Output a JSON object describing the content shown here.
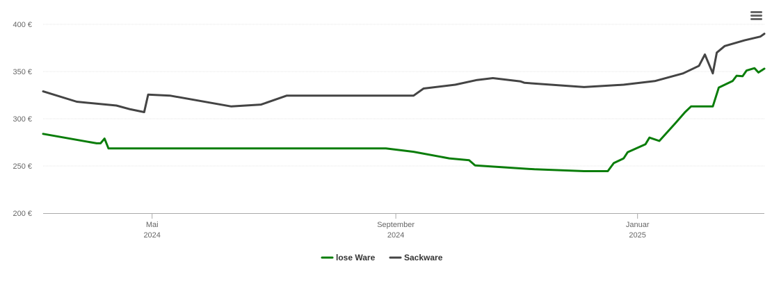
{
  "chart_data": {
    "type": "line",
    "title": "",
    "xlabel": "",
    "ylabel": "",
    "x_range": [
      "2024-03-07",
      "2025-03-06"
    ],
    "ylim": [
      200,
      400
    ],
    "y_ticks": [
      {
        "value": 400,
        "label": "400 €"
      },
      {
        "value": 350,
        "label": "350 €"
      },
      {
        "value": 300,
        "label": "300 €"
      },
      {
        "value": 250,
        "label": "250 €"
      },
      {
        "value": 200,
        "label": "200 €"
      }
    ],
    "x_ticks": [
      {
        "date": "2024-05-01",
        "label": "Mai",
        "year": "2024"
      },
      {
        "date": "2024-09-01",
        "label": "September",
        "year": "2024"
      },
      {
        "date": "2025-01-01",
        "label": "Januar",
        "year": "2025"
      }
    ],
    "grid": "horizontal",
    "legend_position": "bottom",
    "series": [
      {
        "name": "lose Ware",
        "color": "#0a7d0a",
        "points": [
          [
            "2024-03-07",
            284
          ],
          [
            "2024-04-03",
            274
          ],
          [
            "2024-04-05",
            274
          ],
          [
            "2024-04-07",
            279
          ],
          [
            "2024-04-09",
            268.5
          ],
          [
            "2024-08-27",
            268.5
          ],
          [
            "2024-09-10",
            265
          ],
          [
            "2024-09-28",
            258
          ],
          [
            "2024-10-08",
            256
          ],
          [
            "2024-10-11",
            250.5
          ],
          [
            "2024-11-10",
            246.5
          ],
          [
            "2024-12-05",
            244.5
          ],
          [
            "2024-12-17",
            244.5
          ],
          [
            "2024-12-20",
            253
          ],
          [
            "2024-12-25",
            258
          ],
          [
            "2024-12-27",
            264.5
          ],
          [
            "2025-01-05",
            273
          ],
          [
            "2025-01-07",
            280
          ],
          [
            "2025-01-12",
            276.5
          ],
          [
            "2025-01-20",
            295
          ],
          [
            "2025-01-25",
            307
          ],
          [
            "2025-01-28",
            313
          ],
          [
            "2025-02-08",
            313
          ],
          [
            "2025-02-11",
            333
          ],
          [
            "2025-02-18",
            340
          ],
          [
            "2025-02-20",
            345.5
          ],
          [
            "2025-02-23",
            345
          ],
          [
            "2025-02-25",
            351
          ],
          [
            "2025-03-01",
            353.5
          ],
          [
            "2025-03-03",
            349
          ],
          [
            "2025-03-06",
            353
          ]
        ]
      },
      {
        "name": "Sackware",
        "color": "#444444",
        "points": [
          [
            "2024-03-07",
            329
          ],
          [
            "2024-03-24",
            318
          ],
          [
            "2024-04-13",
            314
          ],
          [
            "2024-04-20",
            310
          ],
          [
            "2024-04-27",
            307
          ],
          [
            "2024-04-29",
            325.5
          ],
          [
            "2024-05-10",
            324.5
          ],
          [
            "2024-06-10",
            313
          ],
          [
            "2024-06-25",
            315
          ],
          [
            "2024-07-08",
            324.5
          ],
          [
            "2024-08-28",
            324.5
          ],
          [
            "2024-09-10",
            324.5
          ],
          [
            "2024-09-15",
            332
          ],
          [
            "2024-10-01",
            336
          ],
          [
            "2024-10-12",
            341
          ],
          [
            "2024-10-20",
            343
          ],
          [
            "2024-11-03",
            339.5
          ],
          [
            "2024-11-05",
            338
          ],
          [
            "2024-12-05",
            333.5
          ],
          [
            "2024-12-25",
            336
          ],
          [
            "2025-01-10",
            340
          ],
          [
            "2025-01-24",
            348
          ],
          [
            "2025-02-01",
            356
          ],
          [
            "2025-02-04",
            368
          ],
          [
            "2025-02-08",
            348
          ],
          [
            "2025-02-10",
            370
          ],
          [
            "2025-02-14",
            377
          ],
          [
            "2025-02-24",
            383
          ],
          [
            "2025-03-04",
            387
          ],
          [
            "2025-03-06",
            390
          ]
        ]
      }
    ]
  },
  "menu": {
    "icon": "hamburger-menu-icon"
  }
}
